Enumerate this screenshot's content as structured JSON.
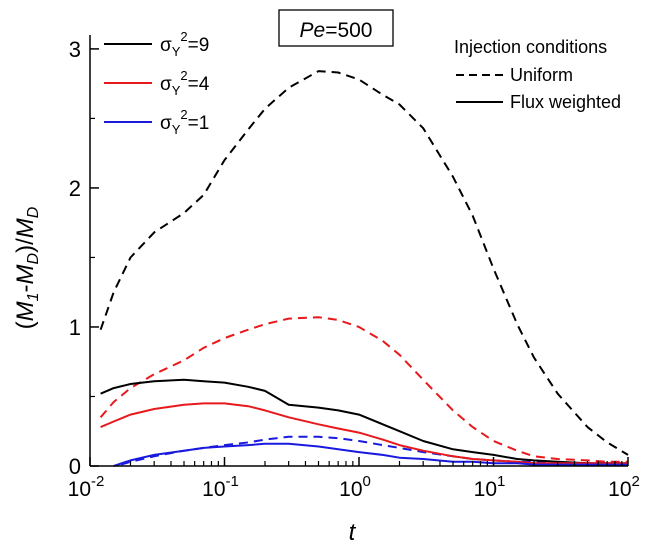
{
  "chart_data": {
    "type": "line",
    "title": "Pe=500",
    "title_parts": {
      "italic": "Pe",
      "rest": "=500"
    },
    "xlabel": "t",
    "ylabel_parts": {
      "open": "(",
      "m1": "M",
      "sub1": "1",
      "dash": "-",
      "m2": "M",
      "sub2": "D",
      "close": ")/",
      "m3": "M",
      "sub3": "D"
    },
    "x_scale": "log",
    "xlim": [
      0.01,
      100
    ],
    "ylim": [
      0,
      3.1
    ],
    "x_ticks": [
      {
        "value": 0.01,
        "base": "10",
        "exp": "-2"
      },
      {
        "value": 0.1,
        "base": "10",
        "exp": "-1"
      },
      {
        "value": 1,
        "base": "10",
        "exp": "0"
      },
      {
        "value": 10,
        "base": "10",
        "exp": "1"
      },
      {
        "value": 100,
        "base": "10",
        "exp": "2"
      }
    ],
    "y_ticks": [
      {
        "value": 0,
        "label": "0"
      },
      {
        "value": 1,
        "label": "1"
      },
      {
        "value": 2,
        "label": "2"
      },
      {
        "value": 3,
        "label": "3"
      }
    ],
    "grid": false,
    "legend_variance": {
      "placement": "top-left",
      "entries": [
        {
          "sigma": "σ",
          "sub": "Y",
          "sup": "2",
          "value": "=9",
          "color": "#000000"
        },
        {
          "sigma": "σ",
          "sub": "Y",
          "sup": "2",
          "value": "=4",
          "color": "#e8191c"
        },
        {
          "sigma": "σ",
          "sub": "Y",
          "sup": "2",
          "value": "=1",
          "color": "#1a1adf"
        }
      ]
    },
    "legend_injection": {
      "placement": "top-right",
      "title": "Injection conditions",
      "entries": [
        {
          "label": "Uniform",
          "dash": "dashed"
        },
        {
          "label": "Flux weighted",
          "dash": "solid"
        }
      ]
    },
    "series": [
      {
        "variance": "9",
        "injection": "Uniform",
        "color": "#000000",
        "dash": "dashed",
        "x": [
          0.012,
          0.015,
          0.02,
          0.03,
          0.05,
          0.07,
          0.1,
          0.15,
          0.2,
          0.3,
          0.5,
          0.7,
          1,
          1.5,
          2,
          3,
          5,
          7,
          10,
          15,
          20,
          30,
          50,
          70,
          100
        ],
        "y": [
          0.98,
          1.25,
          1.5,
          1.68,
          1.82,
          1.95,
          2.2,
          2.42,
          2.57,
          2.72,
          2.84,
          2.83,
          2.78,
          2.67,
          2.6,
          2.43,
          2.08,
          1.8,
          1.42,
          1.02,
          0.78,
          0.52,
          0.28,
          0.17,
          0.08
        ]
      },
      {
        "variance": "4",
        "injection": "Uniform",
        "color": "#e8191c",
        "dash": "dashed",
        "x": [
          0.012,
          0.015,
          0.02,
          0.03,
          0.05,
          0.07,
          0.1,
          0.15,
          0.2,
          0.3,
          0.5,
          0.7,
          1,
          1.5,
          2,
          3,
          5,
          7,
          10,
          15,
          20,
          30,
          50,
          70,
          100
        ],
        "y": [
          0.35,
          0.46,
          0.56,
          0.66,
          0.76,
          0.85,
          0.92,
          0.98,
          1.02,
          1.06,
          1.07,
          1.05,
          1.0,
          0.9,
          0.8,
          0.62,
          0.4,
          0.28,
          0.18,
          0.11,
          0.07,
          0.05,
          0.04,
          0.03,
          0.03
        ]
      },
      {
        "variance": "1",
        "injection": "Uniform",
        "color": "#1a1adf",
        "dash": "dashed",
        "x": [
          0.017,
          0.02,
          0.03,
          0.05,
          0.07,
          0.1,
          0.15,
          0.2,
          0.3,
          0.5,
          0.7,
          1,
          1.5,
          2,
          3,
          5,
          7,
          10,
          15,
          20,
          30,
          50,
          70,
          100
        ],
        "y": [
          0.01,
          0.03,
          0.07,
          0.11,
          0.13,
          0.15,
          0.17,
          0.19,
          0.21,
          0.21,
          0.2,
          0.18,
          0.15,
          0.13,
          0.1,
          0.07,
          0.05,
          0.04,
          0.03,
          0.03,
          0.02,
          0.02,
          0.02,
          0.02
        ]
      },
      {
        "variance": "9",
        "injection": "Flux weighted",
        "color": "#000000",
        "dash": "solid",
        "x": [
          0.012,
          0.015,
          0.02,
          0.03,
          0.05,
          0.07,
          0.1,
          0.15,
          0.2,
          0.3,
          0.5,
          0.7,
          1,
          1.5,
          2,
          3,
          5,
          7,
          10,
          15,
          20,
          30,
          50,
          70,
          100
        ],
        "y": [
          0.52,
          0.56,
          0.59,
          0.61,
          0.62,
          0.61,
          0.6,
          0.57,
          0.54,
          0.44,
          0.42,
          0.4,
          0.37,
          0.3,
          0.25,
          0.18,
          0.12,
          0.1,
          0.08,
          0.05,
          0.04,
          0.03,
          0.02,
          0.02,
          0.02
        ]
      },
      {
        "variance": "4",
        "injection": "Flux weighted",
        "color": "#e8191c",
        "dash": "solid",
        "x": [
          0.012,
          0.015,
          0.02,
          0.03,
          0.05,
          0.07,
          0.1,
          0.15,
          0.2,
          0.3,
          0.5,
          0.7,
          1,
          1.5,
          2,
          3,
          5,
          7,
          10,
          15,
          20,
          30,
          50,
          70,
          100
        ],
        "y": [
          0.28,
          0.32,
          0.37,
          0.41,
          0.44,
          0.45,
          0.45,
          0.43,
          0.4,
          0.35,
          0.3,
          0.27,
          0.24,
          0.19,
          0.15,
          0.11,
          0.07,
          0.05,
          0.04,
          0.03,
          0.02,
          0.02,
          0.02,
          0.02,
          0.02
        ]
      },
      {
        "variance": "1",
        "injection": "Flux weighted",
        "color": "#1a1adf",
        "dash": "solid",
        "x": [
          0.015,
          0.02,
          0.03,
          0.05,
          0.07,
          0.1,
          0.15,
          0.2,
          0.3,
          0.5,
          0.7,
          1,
          1.5,
          2,
          3,
          5,
          7,
          10,
          15,
          20,
          30,
          50,
          70,
          100
        ],
        "y": [
          0.0,
          0.04,
          0.08,
          0.11,
          0.13,
          0.14,
          0.15,
          0.16,
          0.16,
          0.14,
          0.12,
          0.1,
          0.08,
          0.06,
          0.05,
          0.03,
          0.03,
          0.02,
          0.02,
          0.01,
          0.01,
          0.01,
          0.01,
          0.01
        ]
      }
    ]
  }
}
